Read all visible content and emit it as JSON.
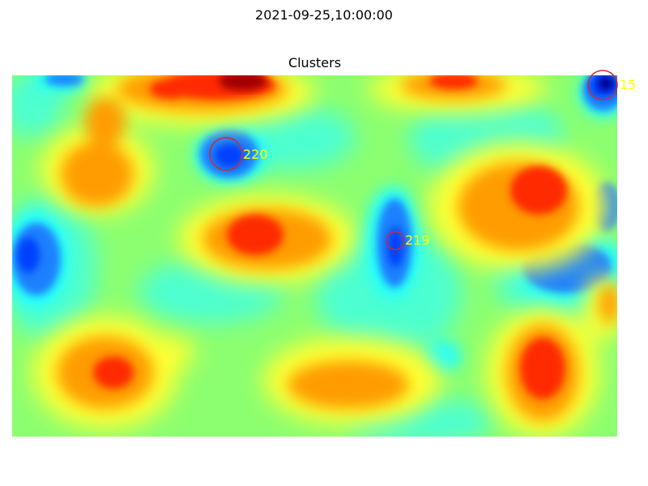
{
  "suptitle": "2021-09-25,10:00:00",
  "chart_data": {
    "type": "heatmap",
    "title": "Clusters",
    "colormap": "jet",
    "colormap_stops": [
      "#00007f",
      "#0000ff",
      "#007fff",
      "#00ffff",
      "#7fff7f",
      "#ffff00",
      "#ff7f00",
      "#ff0000",
      "#7f0000"
    ],
    "axes": "off",
    "cluster_marker_color": "#d62728",
    "cluster_label_color": "#ffff00",
    "clusters": [
      {
        "id": "15",
        "label": "15"
      },
      {
        "id": "220",
        "label": "220"
      },
      {
        "id": "219",
        "label": "219"
      }
    ]
  }
}
